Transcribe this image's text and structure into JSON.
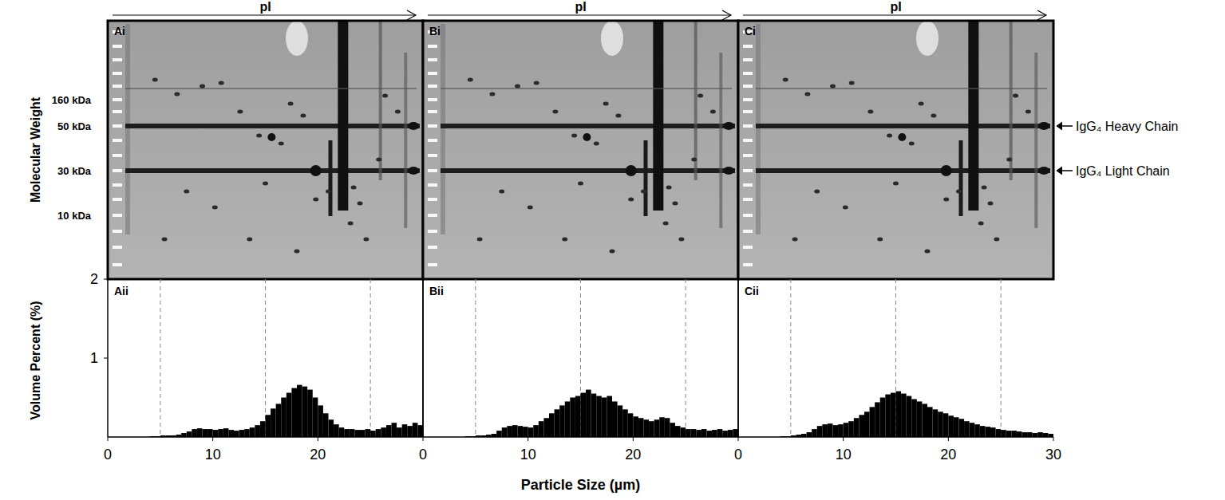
{
  "figure": {
    "x_label": "Particle Size (µm)",
    "y_label": "Volume Percent (%)"
  },
  "gels": {
    "pI_label": "pI",
    "axis_title": "Molecular Weight",
    "mw_labels": [
      "160 kDa",
      "50 kDa",
      "30 kDa",
      "10 kDa"
    ],
    "panels": [
      "Ai",
      "Bi",
      "Ci"
    ],
    "annotations": [
      "IgG₄ Heavy Chain",
      "IgG₄ Light Chain"
    ]
  },
  "chart_data": [
    {
      "type": "histogram",
      "title": "Aii",
      "color": "#000000",
      "xlim": [
        0,
        30
      ],
      "ylim": [
        0,
        2
      ],
      "xticks": [
        0,
        10,
        20
      ],
      "yticks": [
        1,
        2
      ],
      "vlines": [
        5,
        15,
        25
      ],
      "bins": [
        0,
        0.5,
        1,
        1.5,
        2,
        2.5,
        3,
        3.5,
        4,
        4.5,
        5,
        5.5,
        6,
        6.5,
        7,
        7.5,
        8,
        8.5,
        9,
        9.5,
        10,
        10.5,
        11,
        11.5,
        12,
        12.5,
        13,
        13.5,
        14,
        14.5,
        15,
        15.5,
        16,
        16.5,
        17,
        17.5,
        18,
        18.5,
        19,
        19.5,
        20,
        20.5,
        21,
        21.5,
        22,
        22.5,
        23,
        23.5,
        24,
        24.5,
        25,
        25.5,
        26,
        26.5,
        27,
        27.5,
        28,
        28.5,
        29,
        29.5,
        30
      ],
      "counts": [
        0,
        0,
        0,
        0,
        0,
        0,
        0,
        0,
        0.01,
        0.01,
        0.02,
        0.02,
        0.02,
        0.03,
        0.05,
        0.07,
        0.1,
        0.11,
        0.1,
        0.1,
        0.09,
        0.1,
        0.11,
        0.09,
        0.08,
        0.09,
        0.1,
        0.12,
        0.15,
        0.2,
        0.28,
        0.36,
        0.42,
        0.5,
        0.56,
        0.62,
        0.66,
        0.64,
        0.6,
        0.5,
        0.4,
        0.3,
        0.22,
        0.16,
        0.12,
        0.1,
        0.1,
        0.09,
        0.09,
        0.1,
        0.08,
        0.1,
        0.12,
        0.15,
        0.18,
        0.12,
        0.16,
        0.14,
        0.18,
        0.15
      ]
    },
    {
      "type": "histogram",
      "title": "Bii",
      "color": "#000000",
      "tick_labels": "x",
      "xlim": [
        0,
        30
      ],
      "ylim": [
        0,
        2
      ],
      "xticks": [
        0,
        10,
        20
      ],
      "vlines": [
        5,
        15,
        25
      ],
      "bins": [
        0,
        0.5,
        1,
        1.5,
        2,
        2.5,
        3,
        3.5,
        4,
        4.5,
        5,
        5.5,
        6,
        6.5,
        7,
        7.5,
        8,
        8.5,
        9,
        9.5,
        10,
        10.5,
        11,
        11.5,
        12,
        12.5,
        13,
        13.5,
        14,
        14.5,
        15,
        15.5,
        16,
        16.5,
        17,
        17.5,
        18,
        18.5,
        19,
        19.5,
        20,
        20.5,
        21,
        21.5,
        22,
        22.5,
        23,
        23.5,
        24,
        24.5,
        25,
        25.5,
        26,
        26.5,
        27,
        27.5,
        28,
        28.5,
        29,
        29.5,
        30
      ],
      "counts": [
        0,
        0,
        0,
        0,
        0,
        0,
        0,
        0,
        0.01,
        0.01,
        0.02,
        0.02,
        0.03,
        0.04,
        0.08,
        0.12,
        0.14,
        0.15,
        0.14,
        0.13,
        0.12,
        0.15,
        0.2,
        0.24,
        0.3,
        0.35,
        0.4,
        0.45,
        0.5,
        0.52,
        0.56,
        0.6,
        0.55,
        0.52,
        0.5,
        0.52,
        0.45,
        0.4,
        0.35,
        0.3,
        0.26,
        0.24,
        0.22,
        0.2,
        0.22,
        0.25,
        0.24,
        0.18,
        0.14,
        0.12,
        0.1,
        0.1,
        0.09,
        0.1,
        0.08,
        0.09,
        0.1,
        0.08,
        0.09,
        0.1
      ]
    },
    {
      "type": "histogram",
      "title": "Cii",
      "color": "#000000",
      "tick_labels": "x",
      "xlim": [
        0,
        30
      ],
      "ylim": [
        0,
        2
      ],
      "xticks": [
        0,
        10,
        20,
        30
      ],
      "vlines": [
        5,
        15,
        25
      ],
      "bins": [
        0,
        0.5,
        1,
        1.5,
        2,
        2.5,
        3,
        3.5,
        4,
        4.5,
        5,
        5.5,
        6,
        6.5,
        7,
        7.5,
        8,
        8.5,
        9,
        9.5,
        10,
        10.5,
        11,
        11.5,
        12,
        12.5,
        13,
        13.5,
        14,
        14.5,
        15,
        15.5,
        16,
        16.5,
        17,
        17.5,
        18,
        18.5,
        19,
        19.5,
        20,
        20.5,
        21,
        21.5,
        22,
        22.5,
        23,
        23.5,
        24,
        24.5,
        25,
        25.5,
        26,
        26.5,
        27,
        27.5,
        28,
        28.5,
        29,
        29.5,
        30
      ],
      "counts": [
        0,
        0,
        0,
        0,
        0,
        0,
        0,
        0,
        0.01,
        0.01,
        0.02,
        0.03,
        0.04,
        0.06,
        0.1,
        0.14,
        0.16,
        0.17,
        0.15,
        0.16,
        0.18,
        0.2,
        0.24,
        0.28,
        0.32,
        0.38,
        0.44,
        0.5,
        0.54,
        0.56,
        0.58,
        0.55,
        0.52,
        0.48,
        0.45,
        0.42,
        0.38,
        0.35,
        0.32,
        0.3,
        0.27,
        0.25,
        0.23,
        0.2,
        0.18,
        0.16,
        0.14,
        0.13,
        0.12,
        0.1,
        0.09,
        0.08,
        0.08,
        0.07,
        0.06,
        0.06,
        0.05,
        0.06,
        0.05,
        0.04
      ]
    }
  ]
}
